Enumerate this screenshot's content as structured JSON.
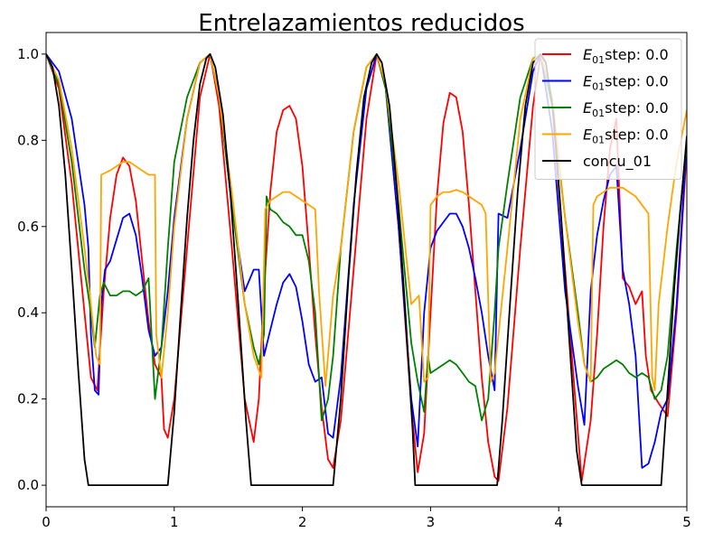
{
  "chart_data": {
    "type": "line",
    "title": "Entrelazamientos reducidos",
    "xlabel": "",
    "ylabel": "",
    "xlim": [
      0,
      5
    ],
    "ylim": [
      -0.05,
      1.05
    ],
    "xticks": [
      0,
      1,
      2,
      3,
      4,
      5
    ],
    "yticks": [
      0.0,
      0.2,
      0.4,
      0.6,
      0.8,
      1.0
    ],
    "xtick_labels": [
      "0",
      "1",
      "2",
      "3",
      "4",
      "5"
    ],
    "ytick_labels": [
      "0.0",
      "0.2",
      "0.4",
      "0.6",
      "0.8",
      "1.0"
    ],
    "grid": false,
    "legend_position": "top-right",
    "series": [
      {
        "name": "E01step: 0.0",
        "legend_main": "E",
        "legend_sub": "01",
        "legend_rest": "step: 0.0",
        "color": "#ff0000",
        "x": [
          0,
          0.1,
          0.2,
          0.3,
          0.35,
          0.4,
          0.45,
          0.5,
          0.55,
          0.6,
          0.65,
          0.7,
          0.75,
          0.8,
          0.85,
          0.9,
          0.92,
          0.95,
          1.0,
          1.1,
          1.2,
          1.28,
          1.35,
          1.45,
          1.55,
          1.62,
          1.66,
          1.7,
          1.75,
          1.8,
          1.85,
          1.9,
          1.95,
          2.0,
          2.05,
          2.1,
          2.15,
          2.2,
          2.24,
          2.3,
          2.4,
          2.5,
          2.58,
          2.65,
          2.75,
          2.85,
          2.9,
          2.95,
          3.0,
          3.05,
          3.1,
          3.15,
          3.2,
          3.25,
          3.3,
          3.35,
          3.4,
          3.45,
          3.5,
          3.53,
          3.6,
          3.7,
          3.8,
          3.86,
          3.95,
          4.05,
          4.15,
          4.18,
          4.25,
          4.3,
          4.35,
          4.4,
          4.45,
          4.5,
          4.55,
          4.6,
          4.65,
          4.68,
          4.72,
          4.78,
          4.85,
          4.92,
          5.0
        ],
        "y": [
          1.0,
          0.92,
          0.7,
          0.4,
          0.25,
          0.22,
          0.45,
          0.62,
          0.72,
          0.76,
          0.74,
          0.66,
          0.52,
          0.38,
          0.28,
          0.25,
          0.13,
          0.11,
          0.2,
          0.55,
          0.9,
          1.0,
          0.88,
          0.55,
          0.2,
          0.1,
          0.2,
          0.45,
          0.68,
          0.82,
          0.87,
          0.88,
          0.85,
          0.74,
          0.55,
          0.35,
          0.18,
          0.06,
          0.04,
          0.15,
          0.5,
          0.85,
          1.0,
          0.92,
          0.6,
          0.18,
          0.03,
          0.12,
          0.4,
          0.67,
          0.84,
          0.91,
          0.9,
          0.82,
          0.65,
          0.45,
          0.25,
          0.1,
          0.02,
          0.01,
          0.18,
          0.55,
          0.88,
          1.0,
          0.88,
          0.5,
          0.12,
          0.01,
          0.15,
          0.35,
          0.6,
          0.78,
          0.85,
          0.48,
          0.46,
          0.42,
          0.45,
          0.3,
          0.22,
          0.19,
          0.16,
          0.4,
          0.78
        ]
      },
      {
        "name": "E01step: 0.0",
        "legend_main": "E",
        "legend_sub": "01",
        "legend_rest": "step: 0.0",
        "color": "#0000ff",
        "x": [
          0,
          0.1,
          0.2,
          0.3,
          0.33,
          0.35,
          0.38,
          0.41,
          0.43,
          0.46,
          0.5,
          0.55,
          0.6,
          0.65,
          0.7,
          0.75,
          0.8,
          0.85,
          0.9,
          0.95,
          1.0,
          1.1,
          1.2,
          1.28,
          1.35,
          1.45,
          1.55,
          1.62,
          1.66,
          1.7,
          1.75,
          1.8,
          1.85,
          1.9,
          1.95,
          2.0,
          2.05,
          2.1,
          2.15,
          2.2,
          2.24,
          2.3,
          2.4,
          2.5,
          2.58,
          2.65,
          2.75,
          2.85,
          2.9,
          2.95,
          3.0,
          3.05,
          3.1,
          3.15,
          3.2,
          3.25,
          3.3,
          3.35,
          3.4,
          3.45,
          3.5,
          3.53,
          3.6,
          3.7,
          3.8,
          3.86,
          3.95,
          4.05,
          4.15,
          4.2,
          4.25,
          4.3,
          4.35,
          4.4,
          4.45,
          4.5,
          4.55,
          4.6,
          4.65,
          4.7,
          4.75,
          4.8,
          4.85,
          4.92,
          5.0
        ],
        "y": [
          1.0,
          0.96,
          0.85,
          0.65,
          0.55,
          0.35,
          0.22,
          0.21,
          0.42,
          0.5,
          0.52,
          0.57,
          0.62,
          0.63,
          0.58,
          0.48,
          0.36,
          0.3,
          0.32,
          0.45,
          0.62,
          0.85,
          0.98,
          1.0,
          0.9,
          0.65,
          0.45,
          0.5,
          0.5,
          0.3,
          0.36,
          0.42,
          0.47,
          0.49,
          0.46,
          0.38,
          0.28,
          0.24,
          0.25,
          0.12,
          0.11,
          0.25,
          0.65,
          0.92,
          1.0,
          0.92,
          0.6,
          0.2,
          0.09,
          0.4,
          0.55,
          0.59,
          0.61,
          0.63,
          0.63,
          0.6,
          0.55,
          0.48,
          0.4,
          0.3,
          0.22,
          0.63,
          0.62,
          0.78,
          0.96,
          1.0,
          0.82,
          0.45,
          0.23,
          0.14,
          0.45,
          0.58,
          0.66,
          0.72,
          0.74,
          0.5,
          0.42,
          0.3,
          0.04,
          0.05,
          0.1,
          0.17,
          0.2,
          0.42,
          0.8
        ]
      },
      {
        "name": "E01step: 0.0",
        "legend_main": "E",
        "legend_sub": "01",
        "legend_rest": "step: 0.0",
        "color": "#008000",
        "x": [
          0,
          0.1,
          0.2,
          0.3,
          0.35,
          0.38,
          0.42,
          0.45,
          0.5,
          0.55,
          0.6,
          0.65,
          0.7,
          0.75,
          0.8,
          0.85,
          0.87,
          0.9,
          0.95,
          1.0,
          1.1,
          1.2,
          1.28,
          1.35,
          1.45,
          1.55,
          1.62,
          1.66,
          1.7,
          1.72,
          1.75,
          1.8,
          1.85,
          1.9,
          1.95,
          2.0,
          2.05,
          2.1,
          2.15,
          2.2,
          2.24,
          2.3,
          2.4,
          2.5,
          2.58,
          2.65,
          2.75,
          2.85,
          2.9,
          2.95,
          2.98,
          3.0,
          3.05,
          3.1,
          3.15,
          3.2,
          3.25,
          3.3,
          3.35,
          3.4,
          3.45,
          3.5,
          3.53,
          3.6,
          3.7,
          3.8,
          3.86,
          3.95,
          4.05,
          4.15,
          4.2,
          4.25,
          4.3,
          4.35,
          4.4,
          4.45,
          4.5,
          4.55,
          4.6,
          4.65,
          4.7,
          4.75,
          4.8,
          4.85,
          4.92,
          5.0
        ],
        "y": [
          1.0,
          0.93,
          0.75,
          0.5,
          0.4,
          0.32,
          0.44,
          0.47,
          0.44,
          0.44,
          0.45,
          0.45,
          0.44,
          0.45,
          0.48,
          0.2,
          0.25,
          0.32,
          0.55,
          0.75,
          0.9,
          0.98,
          1.0,
          0.9,
          0.65,
          0.42,
          0.32,
          0.28,
          0.35,
          0.67,
          0.64,
          0.63,
          0.61,
          0.6,
          0.58,
          0.58,
          0.52,
          0.4,
          0.15,
          0.2,
          0.3,
          0.55,
          0.82,
          0.97,
          1.0,
          0.92,
          0.65,
          0.33,
          0.24,
          0.17,
          0.3,
          0.26,
          0.27,
          0.28,
          0.29,
          0.28,
          0.26,
          0.24,
          0.23,
          0.15,
          0.2,
          0.4,
          0.55,
          0.7,
          0.9,
          0.99,
          1.0,
          0.88,
          0.62,
          0.4,
          0.28,
          0.24,
          0.25,
          0.27,
          0.28,
          0.29,
          0.28,
          0.26,
          0.25,
          0.26,
          0.25,
          0.2,
          0.22,
          0.3,
          0.55,
          0.8
        ]
      },
      {
        "name": "E01step: 0.0",
        "legend_main": "E",
        "legend_sub": "01",
        "legend_rest": "step: 0.0",
        "color": "#ffa500",
        "x": [
          0,
          0.1,
          0.2,
          0.3,
          0.35,
          0.39,
          0.42,
          0.43,
          0.5,
          0.55,
          0.6,
          0.65,
          0.7,
          0.75,
          0.8,
          0.85,
          0.86,
          0.9,
          0.95,
          1.0,
          1.1,
          1.2,
          1.28,
          1.35,
          1.45,
          1.55,
          1.62,
          1.68,
          1.71,
          1.75,
          1.8,
          1.85,
          1.9,
          1.95,
          2.0,
          2.05,
          2.1,
          2.13,
          2.18,
          2.2,
          2.24,
          2.3,
          2.4,
          2.5,
          2.58,
          2.65,
          2.75,
          2.85,
          2.91,
          2.95,
          2.98,
          3.0,
          3.05,
          3.1,
          3.15,
          3.2,
          3.25,
          3.3,
          3.35,
          3.4,
          3.43,
          3.47,
          3.5,
          3.53,
          3.6,
          3.7,
          3.8,
          3.86,
          3.95,
          4.05,
          4.15,
          4.2,
          4.25,
          4.27,
          4.3,
          4.35,
          4.4,
          4.45,
          4.5,
          4.55,
          4.6,
          4.65,
          4.7,
          4.73,
          4.75,
          4.78,
          4.85,
          4.92,
          5.0
        ],
        "y": [
          1.0,
          0.94,
          0.78,
          0.55,
          0.42,
          0.3,
          0.28,
          0.72,
          0.73,
          0.74,
          0.75,
          0.75,
          0.74,
          0.73,
          0.72,
          0.72,
          0.35,
          0.25,
          0.4,
          0.6,
          0.85,
          0.98,
          1.0,
          0.9,
          0.68,
          0.42,
          0.3,
          0.25,
          0.64,
          0.66,
          0.67,
          0.68,
          0.68,
          0.67,
          0.66,
          0.65,
          0.64,
          0.45,
          0.23,
          0.3,
          0.44,
          0.55,
          0.82,
          0.97,
          1.0,
          0.93,
          0.7,
          0.42,
          0.44,
          0.24,
          0.25,
          0.65,
          0.67,
          0.68,
          0.68,
          0.685,
          0.68,
          0.67,
          0.66,
          0.65,
          0.63,
          0.24,
          0.26,
          0.35,
          0.55,
          0.85,
          0.99,
          1.0,
          0.9,
          0.62,
          0.38,
          0.28,
          0.24,
          0.65,
          0.67,
          0.68,
          0.69,
          0.69,
          0.69,
          0.68,
          0.67,
          0.65,
          0.63,
          0.25,
          0.22,
          0.42,
          0.6,
          0.75,
          0.87
        ]
      },
      {
        "name": "concu_01",
        "legend_main": "concu_01",
        "legend_sub": "",
        "legend_rest": "",
        "color": "#000000",
        "x": [
          0,
          0.05,
          0.1,
          0.15,
          0.2,
          0.25,
          0.3,
          0.33,
          0.95,
          1.0,
          1.05,
          1.1,
          1.15,
          1.2,
          1.25,
          1.28,
          1.32,
          1.38,
          1.44,
          1.5,
          1.56,
          1.6,
          2.24,
          2.3,
          2.36,
          2.42,
          2.48,
          2.54,
          2.58,
          2.62,
          2.68,
          2.74,
          2.8,
          2.86,
          2.88,
          3.52,
          3.56,
          3.62,
          3.68,
          3.74,
          3.8,
          3.86,
          3.9,
          3.96,
          4.02,
          4.08,
          4.14,
          4.18,
          4.8,
          4.85,
          4.9,
          4.95,
          5.0
        ],
        "y": [
          1.0,
          0.97,
          0.88,
          0.72,
          0.5,
          0.27,
          0.06,
          0.0,
          0.0,
          0.17,
          0.4,
          0.62,
          0.8,
          0.93,
          0.99,
          1.0,
          0.97,
          0.86,
          0.67,
          0.42,
          0.15,
          0.0,
          0.0,
          0.2,
          0.48,
          0.72,
          0.9,
          0.98,
          1.0,
          0.98,
          0.88,
          0.68,
          0.42,
          0.13,
          0.0,
          0.0,
          0.15,
          0.42,
          0.68,
          0.88,
          0.98,
          1.0,
          0.98,
          0.86,
          0.62,
          0.35,
          0.08,
          0.0,
          0.0,
          0.22,
          0.45,
          0.64,
          0.81
        ]
      }
    ]
  }
}
